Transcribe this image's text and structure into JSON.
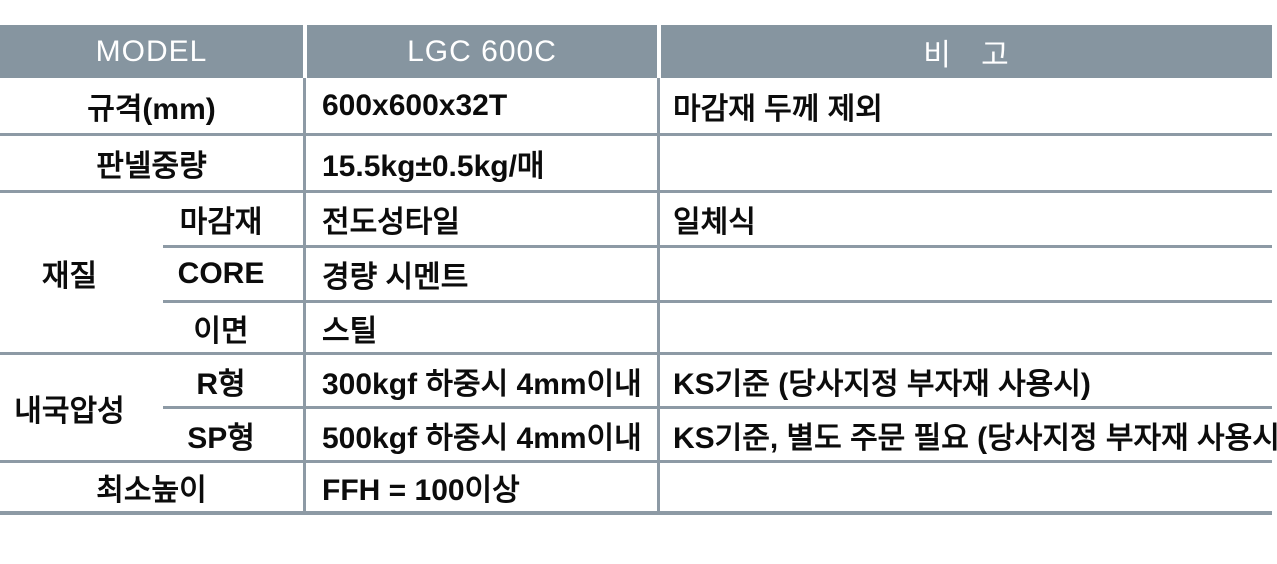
{
  "table": {
    "header": {
      "model_label": "MODEL",
      "model_value": "LGC 600C",
      "remark_label": "비 고"
    },
    "rows": [
      {
        "label": "규격(mm)",
        "value": "600x600x32T",
        "remark": "마감재 두께 제외"
      },
      {
        "label": "판넬중량",
        "value": "15.5kg±0.5kg/매",
        "remark": ""
      },
      {
        "group": "재질",
        "sub": "마감재",
        "value": "전도성타일",
        "remark": "일체식"
      },
      {
        "sub": "CORE",
        "value": "경량 시멘트",
        "remark": ""
      },
      {
        "sub": "이면",
        "value": "스틸",
        "remark": ""
      },
      {
        "group": "내국압성",
        "sub": "R형",
        "value": "300kgf 하중시 4mm이내",
        "remark": "KS기준 (당사지정 부자재 사용시)"
      },
      {
        "sub": "SP형",
        "value": "500kgf 하중시 4mm이내",
        "remark": "KS기준, 별도 주문 필요 (당사지정 부자재 사용시)"
      },
      {
        "label": "최소높이",
        "value": "FFH = 100이상",
        "remark": ""
      }
    ],
    "colors": {
      "header_bg": "#8695a0",
      "header_text": "#ffffff",
      "grid_line": "#8d9aa5",
      "body_text": "#0c0c0c"
    }
  }
}
